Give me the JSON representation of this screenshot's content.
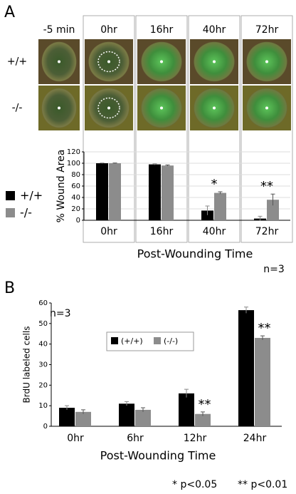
{
  "panel_a": {
    "label": "A",
    "columns": [
      "-5 min",
      "0hr",
      "16hr",
      "40hr",
      "72hr"
    ],
    "rows": [
      "+/+",
      "-/-"
    ]
  },
  "panel_b": {
    "label": "B"
  },
  "chart_data": [
    {
      "type": "bar",
      "ylabel": "% Wound Area",
      "xlabel": "Post-Wounding Time",
      "categories": [
        "0hr",
        "16hr",
        "40hr",
        "72hr"
      ],
      "series": [
        {
          "name": "+/+",
          "color": "#000000",
          "values": [
            100,
            98,
            17,
            3
          ],
          "errors": [
            0.5,
            1,
            8,
            4
          ]
        },
        {
          "name": "-/-",
          "color": "#8c8c8c",
          "values": [
            100,
            96,
            48,
            36
          ],
          "errors": [
            0.5,
            1,
            2,
            10
          ]
        }
      ],
      "ylim": [
        0,
        120
      ],
      "yticks": [
        0,
        20,
        40,
        60,
        80,
        100,
        120
      ],
      "grid": true,
      "legend": "left",
      "annotations": [
        {
          "text": "*",
          "x": "40hr"
        },
        {
          "text": "**",
          "x": "72hr"
        }
      ],
      "note": "n=3"
    },
    {
      "type": "bar",
      "ylabel": "BrdU labeled cells",
      "xlabel": "Post-Wounding Time",
      "categories": [
        "0hr",
        "6hr",
        "12hr",
        "24hr"
      ],
      "series": [
        {
          "name": "(+/+)",
          "color": "#000000",
          "values": [
            9,
            11,
            16,
            56.5
          ],
          "errors": [
            1,
            1,
            2,
            1.5
          ]
        },
        {
          "name": "(-/-)",
          "color": "#8c8c8c",
          "values": [
            7,
            8,
            6,
            43
          ],
          "errors": [
            1,
            1,
            1,
            1
          ]
        }
      ],
      "ylim": [
        0,
        60
      ],
      "yticks": [
        0,
        10,
        20,
        30,
        40,
        50,
        60
      ],
      "grid": false,
      "legend": "top",
      "annotations": [
        {
          "text": "**",
          "x": "12hr"
        },
        {
          "text": "**",
          "x": "24hr"
        }
      ],
      "note": "n=3",
      "footnotes": [
        "* p<0.05",
        "** p<0.01"
      ]
    }
  ]
}
